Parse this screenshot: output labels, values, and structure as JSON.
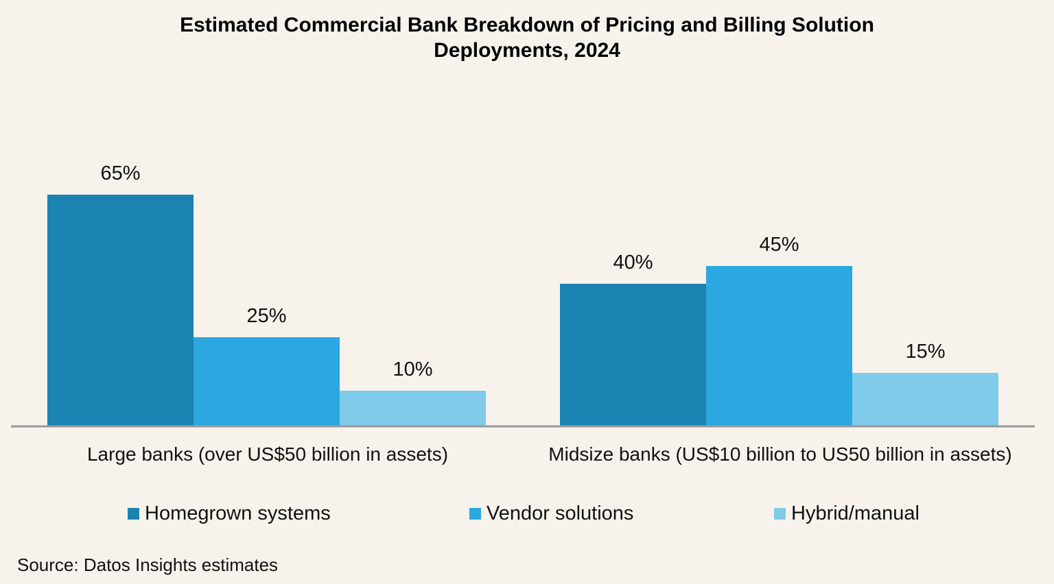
{
  "chart_data": {
    "type": "bar",
    "title": "Estimated Commercial Bank Breakdown of Pricing and Billing Solution Deployments, 2024",
    "title_lines": [
      "Estimated Commercial Bank Breakdown of Pricing and Billing Solution",
      "Deployments, 2024"
    ],
    "categories": [
      "Large banks (over US$50 billion in assets)",
      "Midsize banks (US$10 billion to US50 billion in assets)"
    ],
    "series": [
      {
        "name": "Homegrown systems",
        "values": [
          65,
          40
        ],
        "labels": [
          "65%",
          "40%"
        ],
        "color": "#1b83b1"
      },
      {
        "name": "Vendor solutions",
        "values": [
          25,
          45
        ],
        "labels": [
          "25%",
          "45%"
        ],
        "color": "#2ba8e0"
      },
      {
        "name": "Hybrid/manual",
        "values": [
          10,
          15
        ],
        "labels": [
          "10%",
          "15%"
        ],
        "color": "#80cbea"
      }
    ],
    "ylim": [
      0,
      100
    ],
    "grid": false,
    "legend_position": "bottom",
    "source": "Source: Datos Insights estimates"
  },
  "colors": {
    "background": "#f8f2ec",
    "axis": "#999999",
    "text": "#111111"
  }
}
